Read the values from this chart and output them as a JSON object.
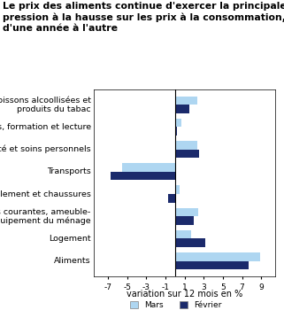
{
  "title_line1": "Le prix des aliments continue d'exercer la principale",
  "title_line2": "pression à la hausse sur les prix à la consommation,",
  "title_line3": "d'une année à l'autre",
  "categories": [
    "Aliments",
    "Logement",
    "Dépenses courantes, ameuble-\nment et équipement du ménage",
    "Habillement et chaussures",
    "Transports",
    "Santé et soins personnels",
    "Loisirs, formation et lecture",
    "Boissons alcoollisées et\nproduits du tabac"
  ],
  "mars_values": [
    8.9,
    1.7,
    2.4,
    0.5,
    -5.5,
    2.3,
    0.7,
    2.3
  ],
  "fevrier_values": [
    7.7,
    3.2,
    2.0,
    -0.7,
    -6.7,
    2.5,
    0.2,
    1.5
  ],
  "mars_color": "#aed6f1",
  "fevrier_color": "#1b2a6b",
  "xlabel": "variation sur 12 mois en %",
  "xlim": [
    -8.5,
    10.5
  ],
  "xticks": [
    -7,
    -5,
    -3,
    -1,
    1,
    3,
    5,
    7,
    9
  ],
  "legend_mars": "Mars",
  "legend_fevrier": "Février",
  "bar_height": 0.38,
  "title_fontsize": 7.8,
  "tick_fontsize": 6.5,
  "label_fontsize": 6.8,
  "xlabel_fontsize": 7.0
}
